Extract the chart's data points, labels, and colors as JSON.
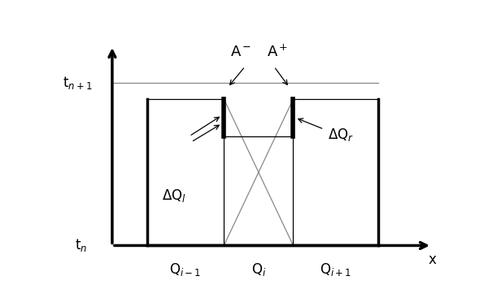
{
  "fig_width": 6.11,
  "fig_height": 3.72,
  "dpi": 100,
  "label_Qi_minus1": "Q$_{i-1}$",
  "label_Qi": "Q$_i$",
  "label_Qi_plus1": "Q$_{i+1}$",
  "label_tn": "t$_n$",
  "label_tn1": "t$_{n+1}$",
  "label_x": "x",
  "label_Am": "A$^-$",
  "label_Ap": "A$^+$",
  "label_DQl": "ΔQ$_l$",
  "label_DQr": "ΔQ$_r$",
  "color_main": "black",
  "color_thin_line": "#888888",
  "lw_thick": 2.5,
  "lw_thin": 0.9,
  "lw_interface": 4.0,
  "fontsize_labels": 12,
  "fontsize_axis_labels": 12
}
